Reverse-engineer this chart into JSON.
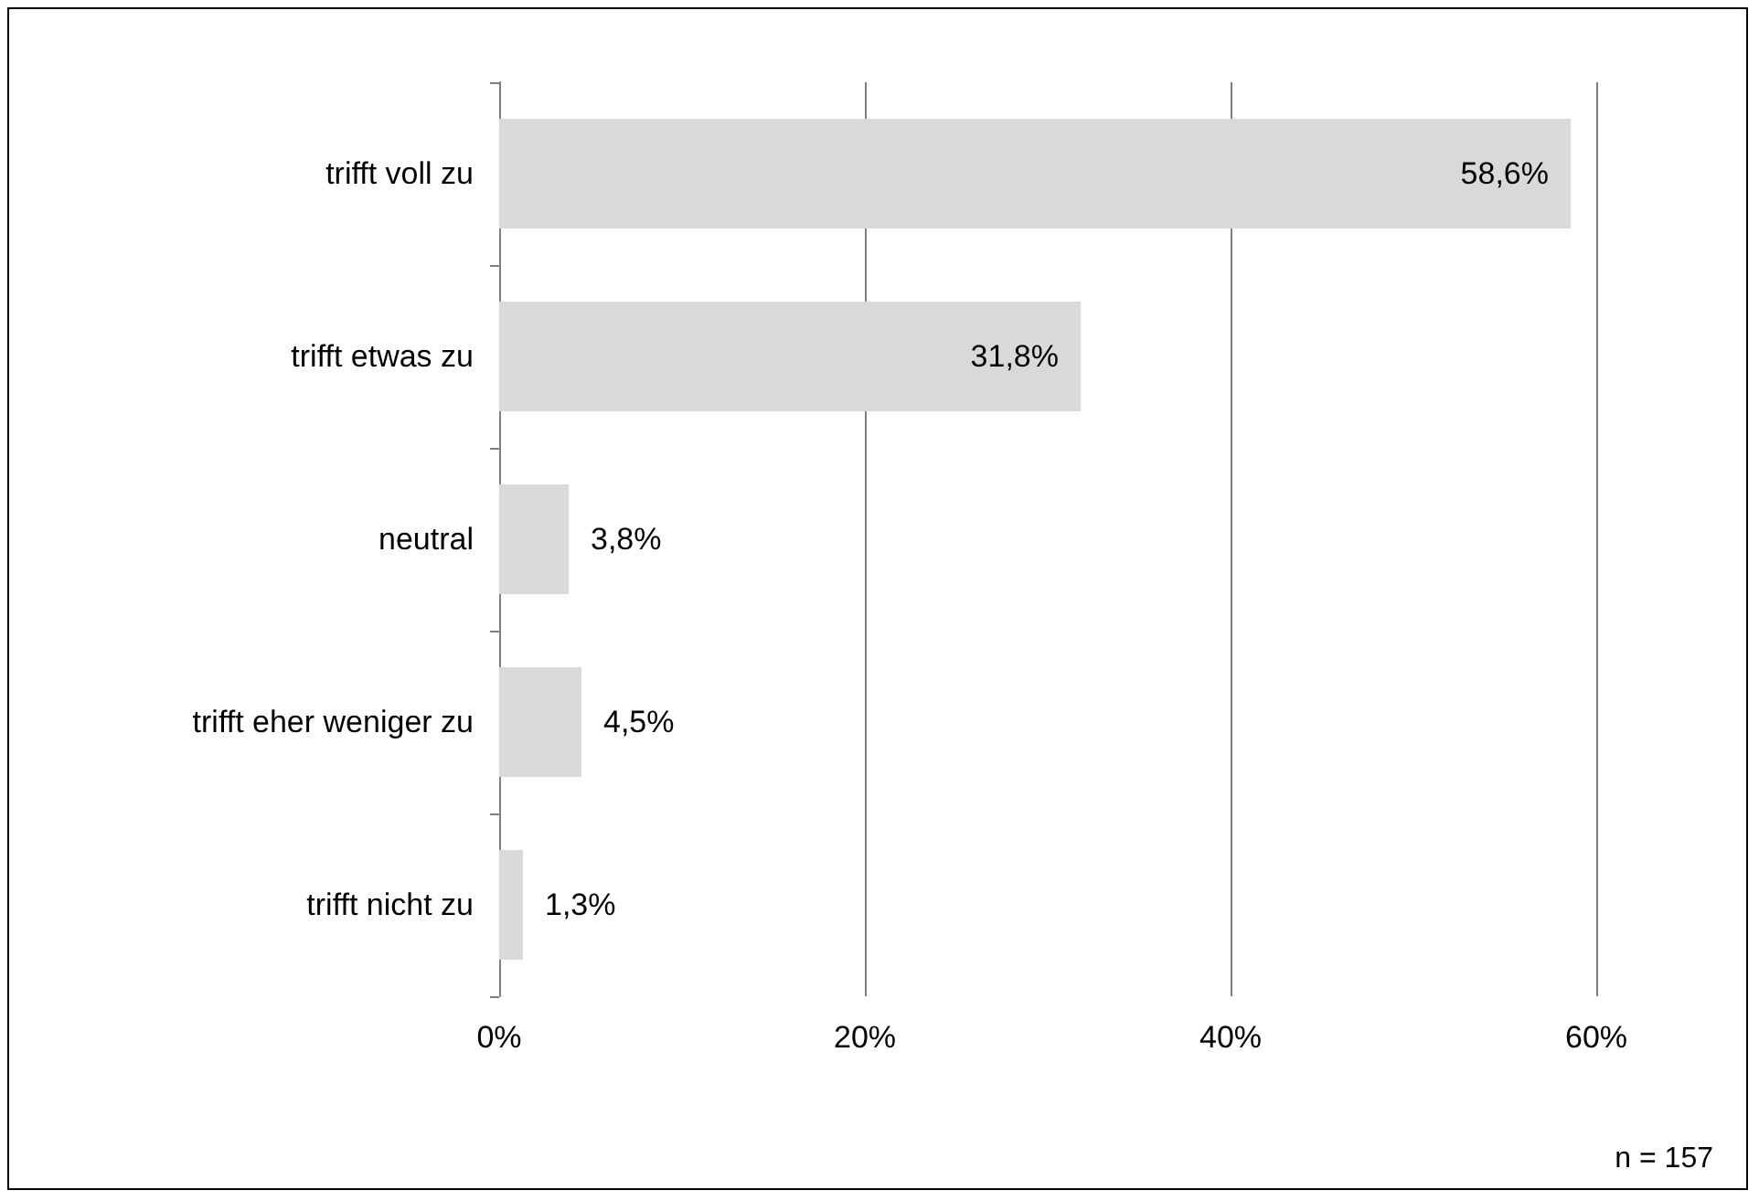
{
  "chart_data": {
    "type": "bar",
    "orientation": "horizontal",
    "categories": [
      "trifft voll zu",
      "trifft etwas zu",
      "neutral",
      "trifft eher weniger zu",
      "trifft nicht zu"
    ],
    "values": [
      58.6,
      31.8,
      3.8,
      4.5,
      1.3
    ],
    "value_labels": [
      "58,6%",
      "31,8%",
      "3,8%",
      "4,5%",
      "1,3%"
    ],
    "color": "#d9d9d9",
    "xlim": [
      0,
      60
    ],
    "xticks": [
      {
        "value": 0,
        "label": "0%"
      },
      {
        "value": 20,
        "label": "20%"
      },
      {
        "value": 40,
        "label": "40%"
      },
      {
        "value": 60,
        "label": "60%"
      }
    ],
    "grid": "x",
    "annotations": [
      "n = 157"
    ]
  }
}
